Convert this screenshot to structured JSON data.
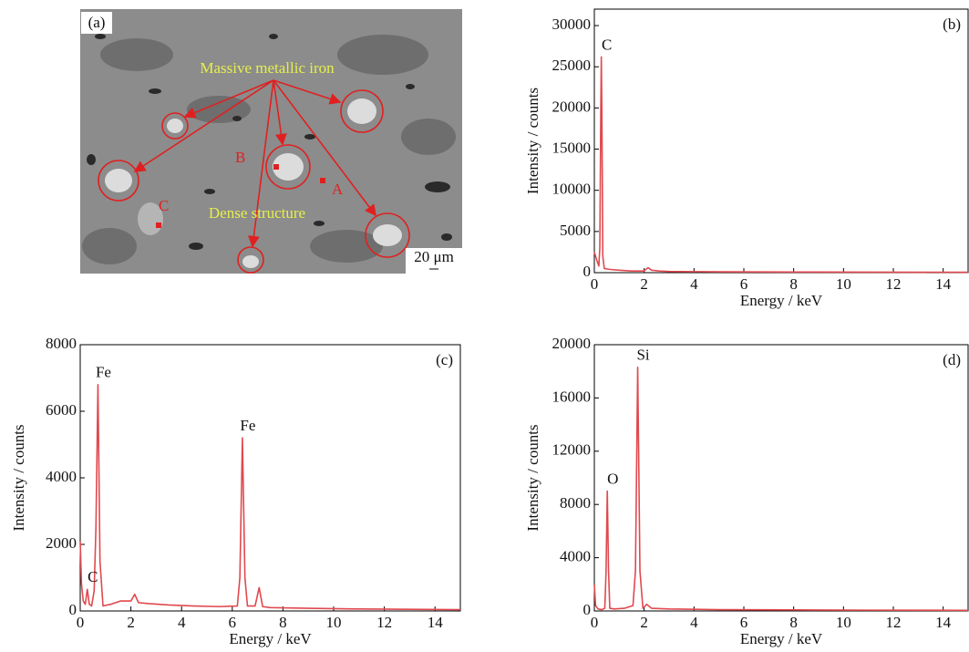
{
  "image_panel": {
    "label": "(a)",
    "annotations": [
      "Massive metallic iron",
      "Dense structure"
    ],
    "points": [
      "A",
      "B",
      "C"
    ],
    "scale_bar": "20 μm"
  },
  "chart_data": [
    {
      "type": "line",
      "label": "(b)",
      "xlabel": "Energy / keV",
      "ylabel": "Intensity / counts",
      "color": "#e0494e",
      "x": [
        0,
        0.1,
        0.18,
        0.22,
        0.26,
        0.28,
        0.3,
        0.34,
        0.4,
        0.6,
        1,
        1.5,
        2,
        2.15,
        2.3,
        2.6,
        3,
        5,
        8,
        11,
        15
      ],
      "values": [
        2500,
        1500,
        800,
        3000,
        20000,
        26200,
        20000,
        2000,
        500,
        400,
        300,
        200,
        200,
        600,
        300,
        200,
        150,
        100,
        80,
        60,
        50
      ],
      "xlim": [
        0,
        15
      ],
      "ylim": [
        0,
        32000
      ],
      "xticks": [
        0,
        2,
        4,
        6,
        8,
        10,
        12,
        14
      ],
      "yticks": [
        0,
        5000,
        10000,
        15000,
        20000,
        25000,
        30000
      ],
      "annotations": [
        {
          "text": "C",
          "x": 0.28,
          "y": 26200
        }
      ]
    },
    {
      "type": "line",
      "label": "(c)",
      "xlabel": "Energy / keV",
      "ylabel": "Intensity / counts",
      "color": "#e0494e",
      "x": [
        0,
        0.05,
        0.12,
        0.2,
        0.28,
        0.36,
        0.45,
        0.55,
        0.62,
        0.7,
        0.78,
        0.9,
        1.2,
        1.6,
        2.0,
        2.15,
        2.3,
        2.7,
        3.5,
        4.5,
        5.5,
        6.2,
        6.3,
        6.4,
        6.5,
        6.6,
        6.9,
        7.06,
        7.2,
        7.5,
        9,
        11,
        13,
        15
      ],
      "values": [
        2100,
        800,
        300,
        200,
        650,
        200,
        150,
        600,
        2500,
        6800,
        1500,
        150,
        200,
        300,
        300,
        500,
        250,
        220,
        180,
        150,
        130,
        150,
        1000,
        5200,
        1000,
        150,
        150,
        700,
        130,
        100,
        80,
        60,
        50,
        40
      ],
      "xlim": [
        0,
        15
      ],
      "ylim": [
        0,
        8000
      ],
      "xticks": [
        0,
        2,
        4,
        6,
        8,
        10,
        12,
        14
      ],
      "yticks": [
        0,
        2000,
        4000,
        6000,
        8000
      ],
      "annotations": [
        {
          "text": "Fe",
          "x": 0.7,
          "y": 6800
        },
        {
          "text": "Fe",
          "x": 6.4,
          "y": 5200
        },
        {
          "text": "C",
          "x": 0.28,
          "y": 650
        }
      ]
    },
    {
      "type": "line",
      "label": "(d)",
      "xlabel": "Energy / keV",
      "ylabel": "Intensity / counts",
      "color": "#e0494e",
      "x": [
        0,
        0.05,
        0.15,
        0.3,
        0.42,
        0.47,
        0.52,
        0.57,
        0.62,
        0.8,
        1.2,
        1.55,
        1.65,
        1.74,
        1.83,
        1.95,
        2.1,
        2.3,
        3,
        5,
        8,
        11,
        15
      ],
      "values": [
        2000,
        400,
        150,
        100,
        200,
        3000,
        9000,
        3000,
        200,
        150,
        200,
        400,
        3000,
        18300,
        3000,
        200,
        500,
        200,
        150,
        100,
        80,
        60,
        50
      ],
      "xlim": [
        0,
        15
      ],
      "ylim": [
        0,
        20000
      ],
      "xticks": [
        0,
        2,
        4,
        6,
        8,
        10,
        12,
        14
      ],
      "yticks": [
        0,
        4000,
        8000,
        12000,
        16000,
        20000
      ],
      "annotations": [
        {
          "text": "O",
          "x": 0.52,
          "y": 9000
        },
        {
          "text": "Si",
          "x": 1.74,
          "y": 18300
        }
      ]
    }
  ]
}
